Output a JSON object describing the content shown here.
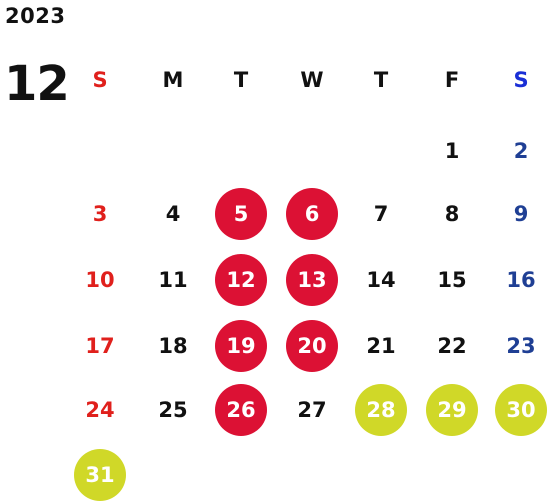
{
  "year": "2023",
  "month": "12",
  "weekdays": [
    "S",
    "M",
    "T",
    "W",
    "T",
    "F",
    "S"
  ],
  "days": [
    {
      "label": "1",
      "kind": "weekday",
      "highlight": "none"
    },
    {
      "label": "2",
      "kind": "saturday",
      "highlight": "none"
    },
    {
      "label": "3",
      "kind": "sunday",
      "highlight": "none"
    },
    {
      "label": "4",
      "kind": "weekday",
      "highlight": "none"
    },
    {
      "label": "5",
      "kind": "weekday",
      "highlight": "red"
    },
    {
      "label": "6",
      "kind": "weekday",
      "highlight": "red"
    },
    {
      "label": "7",
      "kind": "weekday",
      "highlight": "none"
    },
    {
      "label": "8",
      "kind": "weekday",
      "highlight": "none"
    },
    {
      "label": "9",
      "kind": "saturday",
      "highlight": "none"
    },
    {
      "label": "10",
      "kind": "sunday",
      "highlight": "none"
    },
    {
      "label": "11",
      "kind": "weekday",
      "highlight": "none"
    },
    {
      "label": "12",
      "kind": "weekday",
      "highlight": "red"
    },
    {
      "label": "13",
      "kind": "weekday",
      "highlight": "red"
    },
    {
      "label": "14",
      "kind": "weekday",
      "highlight": "none"
    },
    {
      "label": "15",
      "kind": "weekday",
      "highlight": "none"
    },
    {
      "label": "16",
      "kind": "saturday",
      "highlight": "none"
    },
    {
      "label": "17",
      "kind": "sunday",
      "highlight": "none"
    },
    {
      "label": "18",
      "kind": "weekday",
      "highlight": "none"
    },
    {
      "label": "19",
      "kind": "weekday",
      "highlight": "red"
    },
    {
      "label": "20",
      "kind": "weekday",
      "highlight": "red"
    },
    {
      "label": "21",
      "kind": "weekday",
      "highlight": "none"
    },
    {
      "label": "22",
      "kind": "weekday",
      "highlight": "none"
    },
    {
      "label": "23",
      "kind": "saturday",
      "highlight": "none"
    },
    {
      "label": "24",
      "kind": "sunday",
      "highlight": "none"
    },
    {
      "label": "25",
      "kind": "weekday",
      "highlight": "none"
    },
    {
      "label": "26",
      "kind": "weekday",
      "highlight": "red"
    },
    {
      "label": "27",
      "kind": "weekday",
      "highlight": "none"
    },
    {
      "label": "28",
      "kind": "weekday",
      "highlight": "yellow"
    },
    {
      "label": "29",
      "kind": "weekday",
      "highlight": "yellow"
    },
    {
      "label": "30",
      "kind": "saturday",
      "highlight": "yellow"
    },
    {
      "label": "31",
      "kind": "sunday",
      "highlight": "yellow"
    }
  ],
  "colors": {
    "sunday": "#e0201c",
    "saturday": "#1f3f94",
    "highlight_red": "#dc1134",
    "highlight_yellow": "#d0d828"
  }
}
